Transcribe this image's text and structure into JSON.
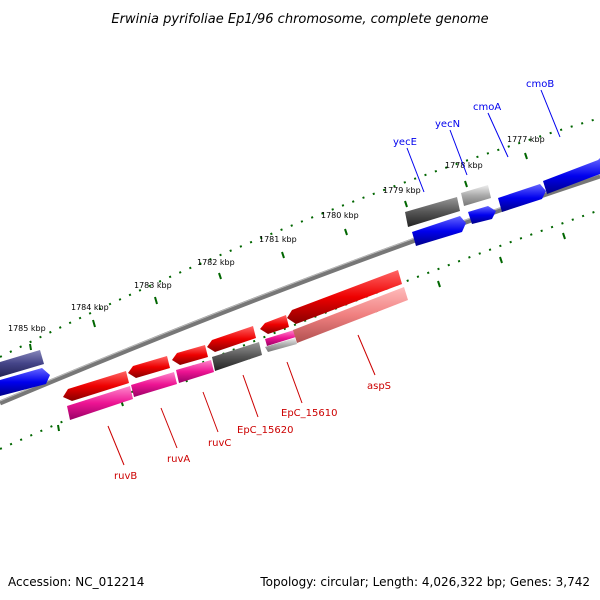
{
  "title": "Erwinia pyrifoliae Ep1/96 chromosome, complete genome",
  "footer": {
    "accession": "Accession: NC_012214",
    "summary": "Topology: circular; Length: 4,026,322 bp; Genes: 3,742"
  },
  "colors": {
    "forward_strand": "#0000ee",
    "reverse_strand": "#ee0000",
    "trna_or_rna": "#ff1493",
    "pseudo_gray": "#555555",
    "tick": "#006600",
    "backbone": "#777777"
  },
  "scale_ticks": [
    "1785 kbp",
    "1784 kbp",
    "1783 kbp",
    "1782 kbp",
    "1781 kbp",
    "1780 kbp",
    "1779 kbp",
    "1778 kbp",
    "1777 kbp"
  ],
  "forward_genes": [
    "yecE",
    "yecN",
    "cmoA",
    "cmoB"
  ],
  "reverse_genes": [
    "ruvB",
    "ruvA",
    "ruvC",
    "EpC_15620",
    "EpC_15610",
    "aspS"
  ]
}
